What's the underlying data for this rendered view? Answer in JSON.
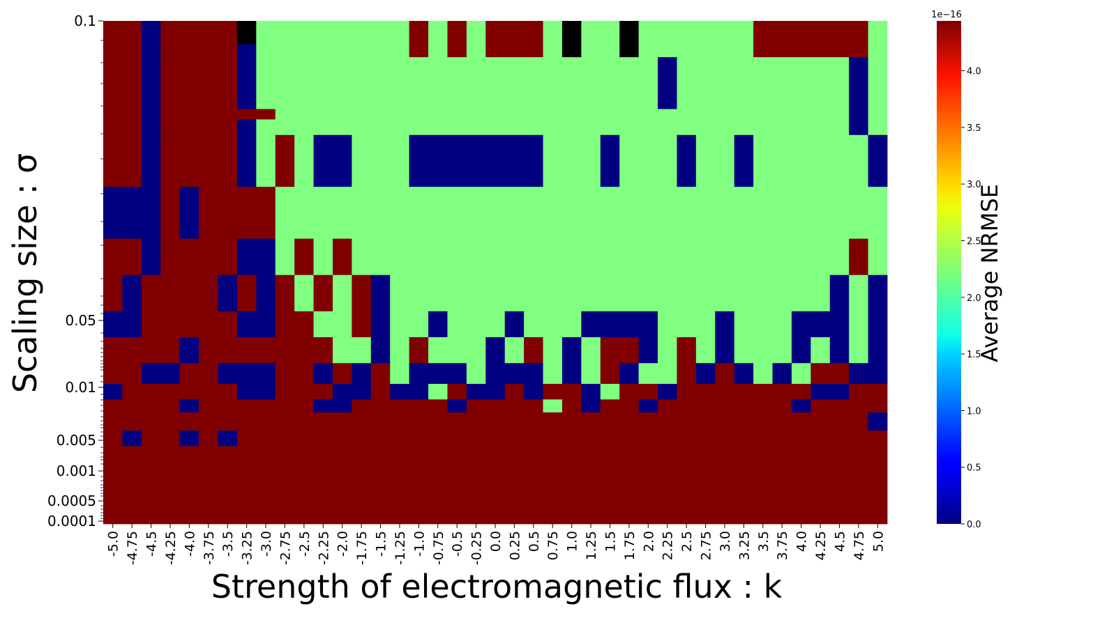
{
  "chart_data": {
    "type": "heatmap",
    "title": "",
    "xlabel": "Strength of electromagnetic flux : k",
    "ylabel": "Scaling size : σ",
    "x_ticks": [
      "-5.0",
      "-4.75",
      "-4.5",
      "-4.25",
      "-4.0",
      "-3.75",
      "-3.5",
      "-3.25",
      "-3.0",
      "-2.75",
      "-2.5",
      "-2.25",
      "-2.0",
      "-1.75",
      "-1.5",
      "-1.25",
      "-1.0",
      "-0.75",
      "-0.5",
      "-0.25",
      "0.0",
      "0.25",
      "0.5",
      "0.75",
      "1.0",
      "1.25",
      "1.5",
      "1.75",
      "2.0",
      "2.25",
      "2.5",
      "2.75",
      "3.0",
      "3.25",
      "3.5",
      "3.75",
      "4.0",
      "4.25",
      "4.5",
      "4.75",
      "5.0"
    ],
    "y_ticks": [
      "0.1",
      "0.05",
      "0.01",
      "0.005",
      "0.001",
      "0.0005",
      "0.0001"
    ],
    "colorbar": {
      "label": "Average NRMSE",
      "scale_label": "1e−16",
      "min": 0.0,
      "max": 4.44,
      "colormap": "jet",
      "ticks": [
        "0.0",
        "0.5",
        "1.0",
        "1.5",
        "2.0",
        "2.5",
        "3.0",
        "3.5",
        "4.0"
      ],
      "tick_values": [
        0.0,
        0.5,
        1.0,
        1.5,
        2.0,
        2.5,
        3.0,
        3.5,
        4.0
      ]
    },
    "values_legend": {
      "0": 0.0,
      "1": 2.22,
      "2": 4.44
    },
    "rows": [
      "22022223111111112121222131131111112222221",
      "22022223111111112121222131131111112222221",
      "22022223111111112121222131131111112222221",
      "22022223111111112121222131131111112222221",
      "22022223111111112121222131131111112222221",
      "22022223111111112121222131131111112222221",
      "22022223111111112121222131131111112222221",
      "22022223111111112121222131131111112222221",
      "22022223111111112121222131131111112222221",
      "22022220111111112121222131131111112222221",
      "22022220111111112121222131131111112222221",
      "22022220111111112121222131131111112222221",
      "22022220111111112121222131131111112222221",
      "22022220111111112121222131131111112222221",
      "22022220111111111111111111111011111111101",
      "22022220111111111111111111111011111111101",
      "22022220111111111111111111111011111111101",
      "22022220111111111111111111111011111111101",
      "22022220111111111111111111111011111111101",
      "22022220111111111111111111111011111111101",
      "22022220111111111111111111111011111111101",
      "22022220111111111111111111111011111111101",
      "22022220111111111111111111111011111111101",
      "22022220111111111111111111111011111111101",
      "22022220111111111111111111111011111111101",
      "22022220111111111111111111111011111111101",
      "22022220111111111111111111111011111111101",
      "22022220111111111111111111111011111111101",
      "22022220111111111111111111111011111111101",
      "22022220111111111111111111111011111111101",
      "22022220111111111111111111111011111111101",
      "22022220111111111111111111111011111111101",
      "22022220111111111111111111111011111111101",
      "22022220111111111111111111111011111111101",
      "22022222211111111111111111111111111111101",
      "22022222211111111111111111111111111111101",
      "22022222211111111111111111111111111111101",
      "22022222211111111111111111111111111111101",
      "22022220111111111111111111111111111111101",
      "22022220111111111111111111111111111111101",
      "22022220111111111111111111111111111111101",
      "22022220111111111111111111111111111111101",
      "22022220111111111111111111111111111111101",
      "22022220111111111111111111111111111111101",
      "22022220121001110000000111011101101111110",
      "22022220121001110000000111011101101111110",
      "22022220121001110000000111011101101111110",
      "22022220121001110000000111011101101111110",
      "22022220121001110000000111011101101111110",
      "22022220121001110000000111011101101111110",
      "22022220121001110000000111011101101111110",
      "22022220121001110000000111011101101111110",
      "22022220121001110000000111011101101111110",
      "22022220121001110000000111011101101111110",
      "22022220121001110000000111011101101111110",
      "22022220121001110000000111011101101111110",
      "22022220121001110000000111011101101111110",
      "22022220121001110000000111011101101111110",
      "22022220121001110000000111011101101111110",
      "22022220121001110000000111011101101111110",
      "22022220121001110000000111011101101111110",
      "22022220121001110000000111011101101111110",
      "22022220121001110000000111011101101111110",
      "22022220121001110000000111011101101111110",
      "00020222211111111111111111111111111111111",
      "00020222211111111111111111111111111111111",
      "00020222211111111111111111111111111111111",
      "00020222211111111111111111111111111111111",
      "00020222211111111111111111111111111111111",
      "00020222211111111111111111111111111111111",
      "00020222211111111111111111111111111111111",
      "00020222211111111111111111111111111111111",
      "00020222211111111111111111111111111111111",
      "00020222211111111111111111111111111111111",
      "00020222211111111111111111111111111111111",
      "00020222211111111111111111111111111111111",
      "00020222211111111111111111111111111111111",
      "00020222211111111111111111111111111111111",
      "00020222211111111111111111111111111111111",
      "00020222211111111111111111111111111111111",
      "00020222211111111111111111111111111111111",
      "00020222211111111111111111111111111111111",
      "00020222211111111111111111111111111111111",
      "00020222211111111111111111111111111111111",
      "22022220012121111111111111111111111111121",
      "22022220012121111111111111111111111111121",
      "22022220012121111111111111111111111111121",
      "22022220012121111111111111111111111111121",
      "22022220012121111111111111111111111111121",
      "22022220012121111111111111111111111111121",
      "22022220012121111111111111111111111111121",
      "22022220012121111111111111111111111111121",
      "22022220012121111111111111111111111111121",
      "22022220012121111111111111111111111111121",
      "22022220012121111111111111111111111111121",
      "22022220012121111111111111111111111111121",
      "22022220012121111111111111111111111111121",
      "22022220012121111111111111111111111111121",
      "20222202021212011111111111111111111111010",
      "20222202021212011111111111111111111111010",
      "20222202021212011111111111111111111111010",
      "20222202021212011111111111111111111111010",
      "20222202021212011111111111111111111111010",
      "20222202021212011111111111111111111111010",
      "20222202021212011111111111111111111111010",
      "20222202021212011111111111111111111111010",
      "20222202021212011111111111111111111111010",
      "20222202021212011111111111111111111111010",
      "20222202021212011111111111111111111111010",
      "20222202021212011111111111111111111111010",
      "20222202021212011111111111111111111111010",
      "20222202021212011111111111111111111111010",
      "00222220022112011011101110000111011100010",
      "00222220022112011011101110000111011100010",
      "00222220022112011011101110000111011100010",
      "00222220022112011011101110000111011100010",
      "00222220022112011011101110000111011100010",
      "00222220022112011011101110000111011100010",
      "00222220022112011011101110000111011100010",
      "00222220022112011011101110000111011100010",
      "00222220022112011011101110000111011100010",
      "00222220022112011011101110000111011100010",
      "22220222222211012111012101220121011101010",
      "22220222222211012111012101220121011101010",
      "22220222222211012111012101220121011101010",
      "22220222222211012111012101220121011101010",
      "22220222222211012111012101220121011101010",
      "22220222222211012111012101220121011101010",
      "22220222222211012111012101220121011101010",
      "22220222222211012111012101220121011101010",
      "22220222222211012111012101220121011101010",
      "22220222222211012111012101220121011101010",
      "22002200022020210001000101201120201012200",
      "22002200022020210001000101201120201012200",
      "22002200022020210001000101201120201012200",
      "22002200022020210001000101201120201012200",
      "22002200022020210001000101201120201012200",
      "22002200022020210001000101201120201012200",
      "22002200022020210001000101201120201012200",
      "22002200022020210001000101201120201012200",
      "02222220022200200120020220122022222220022",
      "02222220022200200120020220122022222220022",
      "02222220022200200120020220122022222220022",
      "02222220022200200120020220122022222220022",
      "02222220022200200120020220122022222220022",
      "02222220022200200120020220122022222220022",
      "22220222222002222202222120220222222202222",
      "22220222222002222202222120220222222202222",
      "22220222222002222202222120220222222202222",
      "22220222222002222202222120220222222202222",
      "22220222222002222202222120220222222202222",
      "22222222222222222222222222222222222222220",
      "22222222222222222222222222222222222222220",
      "22222222222222222222222222222222222222220",
      "22222222222222222222222222222222222222220",
      "22222222222222222222222222222222222222220",
      "22222222222222222222222222222222222222220",
      "22222222222222222222222222222222222222220",
      "20220202222222222222222222222222222222222",
      "20220202222222222222222222222222222222222",
      "20220202222222222222222222222222222222222",
      "20220202222222222222222222222222222222222",
      "20220202222222222222222222222222222222222",
      "20220202222222222222222222222222222222222",
      "22222222222222222222222222222222222222222",
      "22222222222222222222222222222222222222222",
      "22222222222222222222222222222222222222222",
      "22222222222222222222222222222222222222222",
      "22222222222222222222222222222222222222222",
      "22222222222222222222222222222222222222222",
      "22222222222222222222222222222222222222222",
      "22222222222222222222222222222222222222222",
      "22222222222222222222222222222222222222222",
      "22222222222222222222222222222222222222222",
      "22222222222222222222222222222222222222222",
      "22222222222222222222222222222222222222222",
      "22222222222222222222222222222222222222222",
      "22222222222222222222222222222222222222222",
      "22222222222222222222222222222222222222222",
      "22222222222222222222222222222222222222222",
      "22222222222222222222222222222222222222222",
      "22222222222222222222222222222222222222222",
      "22222222222222222222222222222222222222222",
      "22222222222222222222222222222222222222222",
      "22222222222222222222222222222222222222222",
      "22222222222222222222222222222222222222222",
      "22222222222222222222222222222222222222222",
      "22222222222222222222222222222222222222222",
      "22222222222222222222222222222222222222222",
      "22222222222222222222222222222222222222222",
      "22222222222222222222222222222222222222222",
      "22222222222222222222222222222222222222222",
      "22222222222222222222222222222222222222222",
      "22222222222222222222222222222222222222222"
    ]
  }
}
